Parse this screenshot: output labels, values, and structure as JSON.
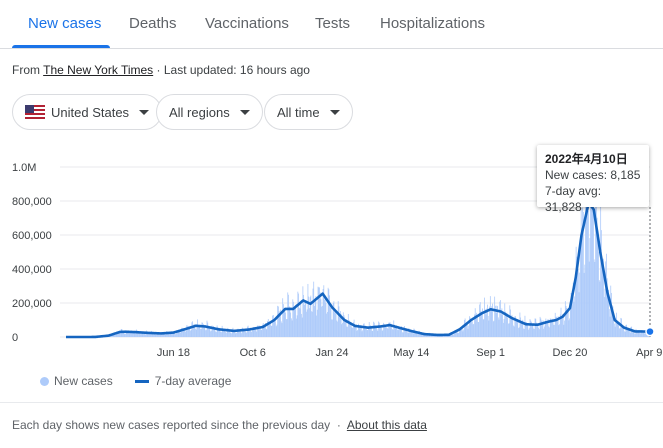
{
  "tabs": [
    "New cases",
    "Deaths",
    "Vaccinations",
    "Tests",
    "Hospitalizations"
  ],
  "source": {
    "prefix": "From",
    "name": "The New York Times",
    "updated": "· Last updated: 16 hours ago"
  },
  "filters": {
    "country": "United States",
    "region": "All regions",
    "time": "All time"
  },
  "tooltip": {
    "date": "2022年4月10日",
    "new_cases": "New cases: 8,185",
    "avg": "7-day avg: 31,828"
  },
  "legend": {
    "bars": "New cases",
    "line": "7-day average"
  },
  "footer": {
    "note": "Each day shows new cases reported since the previous day",
    "sep": "·",
    "link": "About this data"
  },
  "colors": {
    "accent": "#1a73e8",
    "line": "#1565c0",
    "bars": "#aecbfa"
  },
  "chart_data": {
    "type": "line",
    "title": "",
    "xlabel": "",
    "ylabel": "",
    "ylim": [
      0,
      1000000
    ],
    "y_ticks": [
      {
        "value": 0,
        "label": "0"
      },
      {
        "value": 200000,
        "label": "200,000"
      },
      {
        "value": 400000,
        "label": "400,000"
      },
      {
        "value": 600000,
        "label": "600,000"
      },
      {
        "value": 800000,
        "label": "800,000"
      },
      {
        "value": 1000000,
        "label": "1.0M"
      }
    ],
    "xlim": [
      "2020-01-21",
      "2022-04-10"
    ],
    "x_ticks": [
      {
        "date": "2020-06-18",
        "label": "Jun 18"
      },
      {
        "date": "2020-10-06",
        "label": "Oct 6"
      },
      {
        "date": "2021-01-24",
        "label": "Jan 24"
      },
      {
        "date": "2021-05-14",
        "label": "May 14"
      },
      {
        "date": "2021-09-01",
        "label": "Sep 1"
      },
      {
        "date": "2021-12-20",
        "label": "Dec 20"
      },
      {
        "date": "2022-04-09",
        "label": "Apr 9"
      }
    ],
    "grid": true,
    "legend_position": "bottom-left",
    "series": [
      {
        "name": "7-day average",
        "kind": "line",
        "points": [
          [
            "2020-01-21",
            0
          ],
          [
            "2020-03-01",
            100
          ],
          [
            "2020-03-20",
            8000
          ],
          [
            "2020-04-05",
            30000
          ],
          [
            "2020-04-12",
            31000
          ],
          [
            "2020-04-25",
            29000
          ],
          [
            "2020-05-15",
            24000
          ],
          [
            "2020-06-01",
            21000
          ],
          [
            "2020-06-18",
            26000
          ],
          [
            "2020-07-05",
            47000
          ],
          [
            "2020-07-19",
            66000
          ],
          [
            "2020-08-01",
            62000
          ],
          [
            "2020-08-20",
            45000
          ],
          [
            "2020-09-10",
            36000
          ],
          [
            "2020-10-01",
            44000
          ],
          [
            "2020-10-20",
            59000
          ],
          [
            "2020-11-05",
            100000
          ],
          [
            "2020-11-20",
            165000
          ],
          [
            "2020-12-01",
            165000
          ],
          [
            "2020-12-15",
            215000
          ],
          [
            "2020-12-25",
            195000
          ],
          [
            "2021-01-11",
            255000
          ],
          [
            "2021-01-24",
            175000
          ],
          [
            "2021-02-10",
            100000
          ],
          [
            "2021-02-25",
            65000
          ],
          [
            "2021-03-15",
            55000
          ],
          [
            "2021-04-01",
            62000
          ],
          [
            "2021-04-14",
            70000
          ],
          [
            "2021-05-01",
            50000
          ],
          [
            "2021-05-14",
            35000
          ],
          [
            "2021-06-01",
            17000
          ],
          [
            "2021-06-20",
            12000
          ],
          [
            "2021-07-05",
            13000
          ],
          [
            "2021-07-20",
            45000
          ],
          [
            "2021-08-05",
            100000
          ],
          [
            "2021-08-20",
            140000
          ],
          [
            "2021-09-01",
            163000
          ],
          [
            "2021-09-15",
            150000
          ],
          [
            "2021-10-01",
            110000
          ],
          [
            "2021-10-20",
            75000
          ],
          [
            "2021-11-05",
            72000
          ],
          [
            "2021-11-20",
            90000
          ],
          [
            "2021-12-01",
            100000
          ],
          [
            "2021-12-10",
            120000
          ],
          [
            "2021-12-20",
            170000
          ],
          [
            "2021-12-28",
            350000
          ],
          [
            "2022-01-05",
            600000
          ],
          [
            "2022-01-15",
            790000
          ],
          [
            "2022-01-22",
            750000
          ],
          [
            "2022-01-31",
            500000
          ],
          [
            "2022-02-10",
            260000
          ],
          [
            "2022-02-20",
            100000
          ],
          [
            "2022-03-05",
            55000
          ],
          [
            "2022-03-20",
            33000
          ],
          [
            "2022-04-10",
            31828
          ]
        ]
      },
      {
        "name": "New cases",
        "kind": "bar",
        "note": "daily values fluctuate around the 7-day average"
      }
    ]
  }
}
